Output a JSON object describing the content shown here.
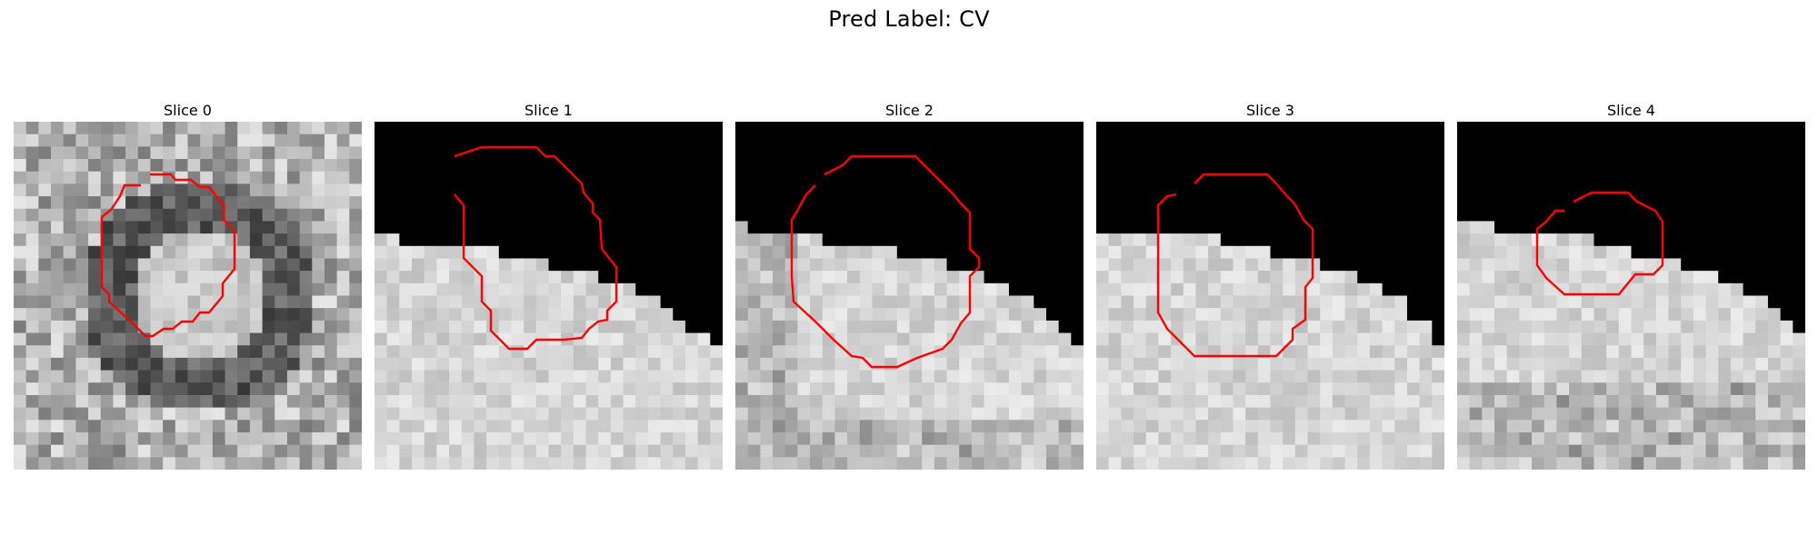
{
  "figure": {
    "title": "Pred Label: CV"
  },
  "contour_color": "#ff0000",
  "slices": [
    {
      "title": "Slice 0",
      "tissue": "ring"
    },
    {
      "title": "Slice 1",
      "tissue": "edge-top"
    },
    {
      "title": "Slice 2",
      "tissue": "edge-top"
    },
    {
      "title": "Slice 3",
      "tissue": "edge-top"
    },
    {
      "title": "Slice 4",
      "tissue": "edge-top"
    }
  ]
}
